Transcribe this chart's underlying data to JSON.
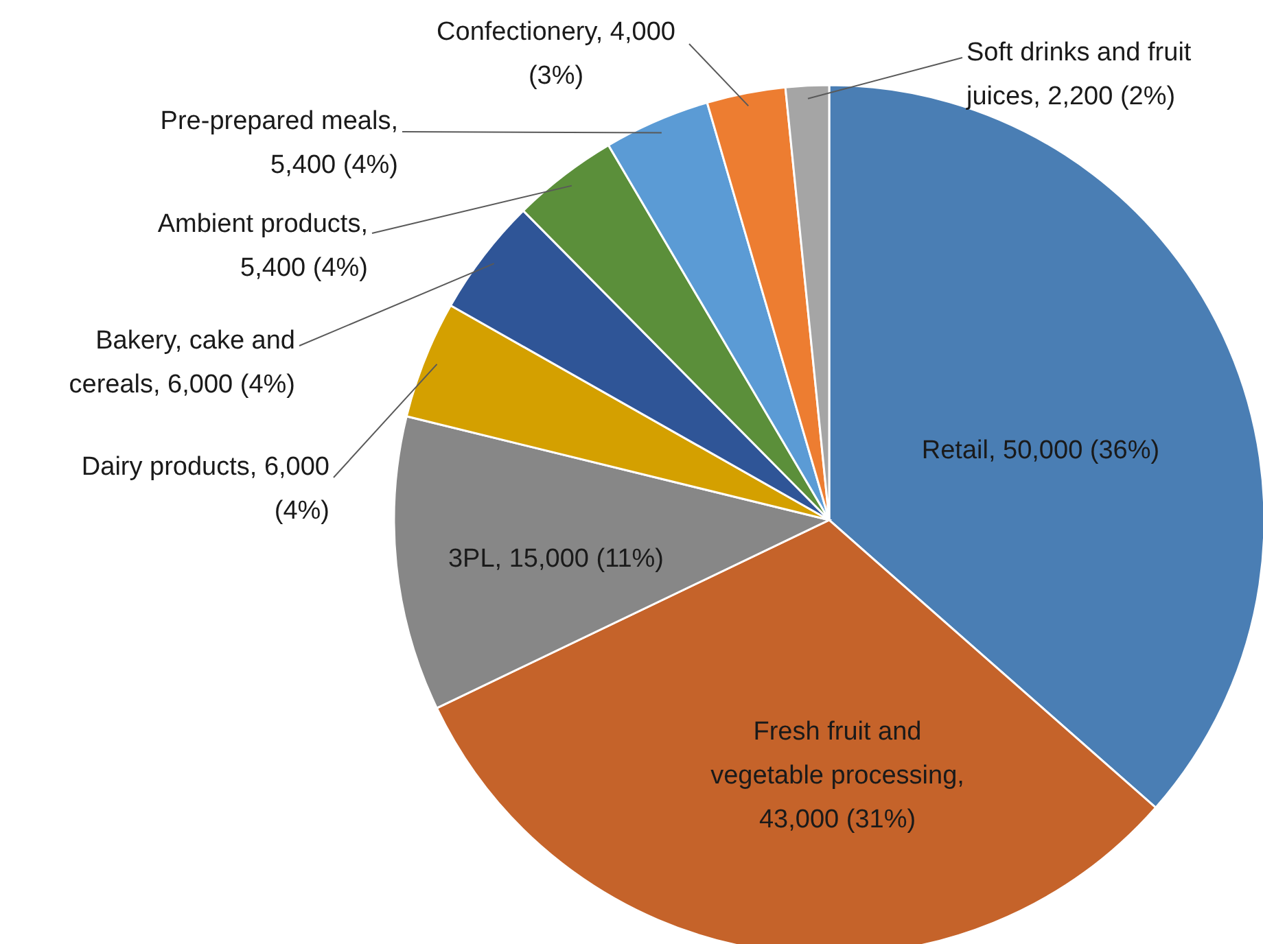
{
  "chart_data": {
    "type": "pie",
    "categories": [
      "Retail",
      "Fresh fruit and vegetable processing",
      "3PL",
      "Dairy products",
      "Bakery, cake and cereals",
      "Ambient products",
      "Pre-prepared meals",
      "Confectionery",
      "Soft drinks and fruit juices"
    ],
    "values": [
      50000,
      43000,
      15000,
      6000,
      6000,
      5400,
      5400,
      4000,
      2200
    ],
    "colors": [
      "#4a7eb4",
      "#c5632a",
      "#878787",
      "#d4a000",
      "#2f5597",
      "#5b8f3a",
      "#5b9bd5",
      "#ed7d31",
      "#a5a5a5"
    ],
    "value_labels": [
      ", 50,000 (36%)",
      ", 43,000 (31%)",
      ", 15,000 (11%)",
      ", 6,000 (4%)",
      ", 6,000 (4%)",
      ", 5,400 (4%)",
      ", 5,400 (4%)",
      ", 4,000 (3%)",
      ", 2,200 (2%)"
    ]
  }
}
